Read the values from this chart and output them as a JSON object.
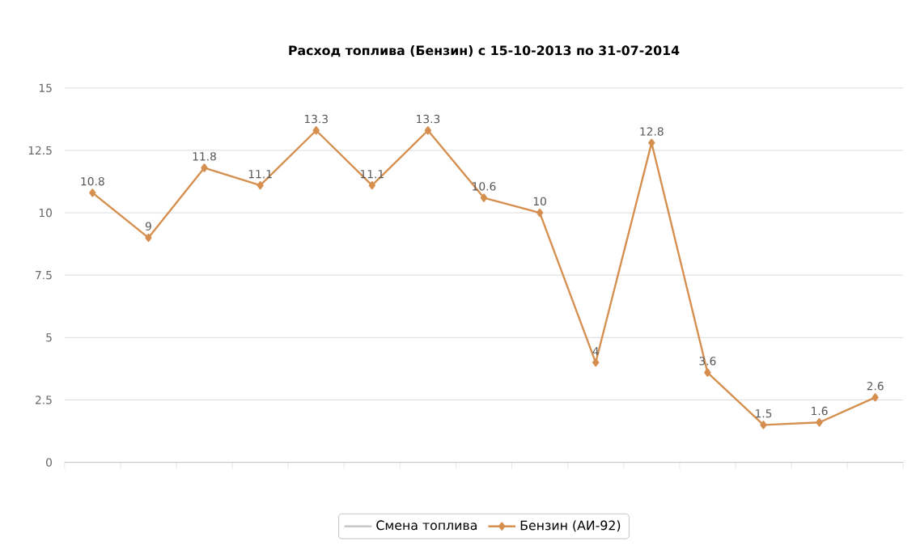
{
  "chart_data": {
    "type": "line",
    "title": "Расход топлива (Бензин) с 15-10-2013 по 31-07-2014",
    "categories": [
      null,
      null,
      null,
      null,
      null,
      null,
      null,
      null,
      null,
      null,
      null,
      null,
      null,
      null,
      null
    ],
    "series": [
      {
        "name": "Смена топлива",
        "color": "#c8c8c8",
        "values": [
          null,
          null,
          null,
          null,
          null,
          null,
          null,
          null,
          null,
          null,
          null,
          null,
          null,
          null,
          null
        ]
      },
      {
        "name": "Бензин (АИ-92)",
        "color": "#d58f4f",
        "values": [
          10.8,
          9,
          11.8,
          11.1,
          13.3,
          11.1,
          13.3,
          10.6,
          10,
          4,
          12.8,
          3.6,
          1.5,
          1.6,
          2.6
        ]
      }
    ],
    "ylim": [
      0,
      15
    ],
    "yticks": [
      0,
      2.5,
      5,
      7.5,
      10,
      12.5,
      15
    ],
    "grid": "y",
    "legend": "bottom",
    "tick_labels": "y",
    "marker": "diamond",
    "line_style": "solid",
    "data_labels": true
  }
}
